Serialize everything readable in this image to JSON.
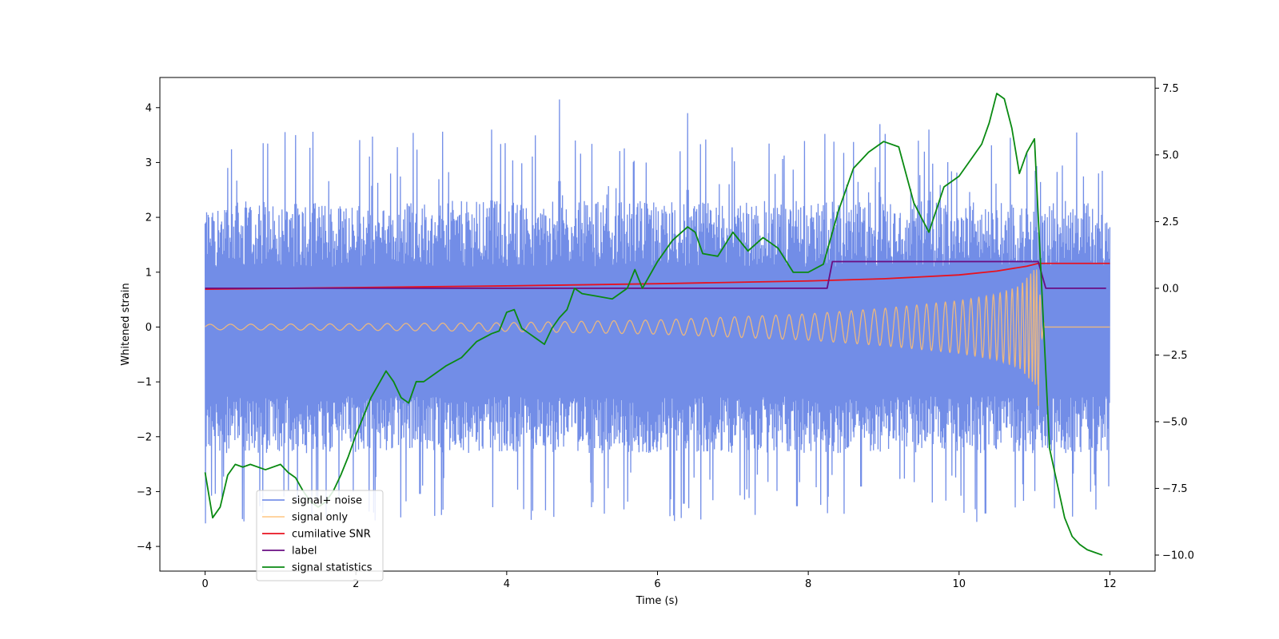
{
  "chart_data": {
    "type": "line",
    "title": "",
    "xlabel": "Time (s)",
    "ylabel": "Whitened strain",
    "y2label": "",
    "xlim": [
      -0.6,
      12.6
    ],
    "ylim": [
      -4.45,
      4.55
    ],
    "y2lim": [
      -10.6,
      7.9
    ],
    "xticks": [
      0,
      2,
      4,
      6,
      8,
      10,
      12
    ],
    "xtick_labels": [
      "0",
      "2",
      "4",
      "6",
      "8",
      "10",
      "12"
    ],
    "yticks": [
      4,
      3,
      2,
      1,
      0,
      -1,
      -2,
      -3,
      -4
    ],
    "ytick_labels": [
      "4",
      "3",
      "2",
      "1",
      "0",
      "−1",
      "−2",
      "−3",
      "−4"
    ],
    "y2ticks": [
      7.5,
      5.0,
      2.5,
      0.0,
      -2.5,
      -5.0,
      -7.5,
      -10.0
    ],
    "y2tick_labels": [
      "7.5",
      "5.0",
      "2.5",
      "0.0",
      "−2.5",
      "−5.0",
      "−7.5",
      "−10.0"
    ],
    "grid": false,
    "legend_position": "lower-left",
    "series": [
      {
        "name": "signal+ noise",
        "color": "#6a87e6",
        "axis": "left",
        "style": "noise band",
        "t_range": [
          0,
          12
        ],
        "band_low": -2.3,
        "band_high": 2.0,
        "peaks_high": [
          [
            0.05,
            2.0
          ],
          [
            0.3,
            2.9
          ],
          [
            1.2,
            3.5
          ],
          [
            3.8,
            3.6
          ],
          [
            4.7,
            4.15
          ],
          [
            6.4,
            3.9
          ],
          [
            8.95,
            3.7
          ],
          [
            9.6,
            3.6
          ],
          [
            10.9,
            3.2
          ],
          [
            11.85,
            2.8
          ]
        ],
        "peaks_low": [
          [
            0.0,
            -4.0
          ],
          [
            2.85,
            -3.4
          ],
          [
            6.35,
            -3.6
          ],
          [
            7.85,
            -3.65
          ],
          [
            8.7,
            -3.25
          ],
          [
            10.35,
            -3.8
          ],
          [
            11.8,
            -3.0
          ]
        ]
      },
      {
        "name": "signal only",
        "color": "#ffbe6f",
        "axis": "left",
        "style": "chirp",
        "t_range": [
          0,
          12
        ],
        "merger_time": 11.05,
        "amplitude_start": 0.05,
        "amplitude_peak": 1.1,
        "envelope_samples": [
          [
            0,
            0.05
          ],
          [
            2,
            0.06
          ],
          [
            4,
            0.08
          ],
          [
            6,
            0.13
          ],
          [
            8,
            0.24
          ],
          [
            9,
            0.34
          ],
          [
            10,
            0.48
          ],
          [
            10.5,
            0.6
          ],
          [
            10.8,
            0.75
          ],
          [
            11.0,
            1.05
          ]
        ]
      },
      {
        "name": "cumilative SNR",
        "color": "#e8121f",
        "axis": "left",
        "x": [
          0,
          2,
          4,
          6,
          8,
          9,
          10,
          10.5,
          10.9,
          11.05,
          11.1,
          12
        ],
        "values": [
          0.69,
          0.72,
          0.75,
          0.79,
          0.84,
          0.88,
          0.95,
          1.02,
          1.11,
          1.16,
          1.16,
          1.16
        ]
      },
      {
        "name": "label",
        "color": "#6a0d82",
        "axis": "right",
        "x": [
          0,
          8.25,
          8.32,
          11.05,
          11.15,
          11.95
        ],
        "values": [
          0.0,
          0.0,
          1.0,
          1.0,
          0.0,
          0.0
        ]
      },
      {
        "name": "signal statistics",
        "color": "#0a8a12",
        "axis": "right",
        "x": [
          0,
          0.1,
          0.2,
          0.3,
          0.4,
          0.5,
          0.6,
          0.8,
          1.0,
          1.1,
          1.2,
          1.3,
          1.4,
          1.5,
          1.6,
          1.7,
          1.8,
          1.9,
          2.0,
          2.1,
          2.2,
          2.3,
          2.4,
          2.5,
          2.6,
          2.7,
          2.8,
          2.9,
          3.0,
          3.2,
          3.4,
          3.6,
          3.8,
          3.9,
          4.0,
          4.1,
          4.2,
          4.3,
          4.4,
          4.5,
          4.6,
          4.7,
          4.8,
          4.9,
          5.0,
          5.2,
          5.4,
          5.6,
          5.7,
          5.8,
          6.0,
          6.2,
          6.4,
          6.5,
          6.6,
          6.8,
          7.0,
          7.2,
          7.4,
          7.6,
          7.8,
          8.0,
          8.2,
          8.4,
          8.6,
          8.8,
          9.0,
          9.2,
          9.4,
          9.6,
          9.8,
          10.0,
          10.2,
          10.3,
          10.4,
          10.5,
          10.6,
          10.7,
          10.8,
          10.9,
          11.0,
          11.1,
          11.2,
          11.3,
          11.4,
          11.5,
          11.6,
          11.7,
          11.8,
          11.9
        ],
        "values": [
          -6.9,
          -8.6,
          -8.2,
          -7.0,
          -6.6,
          -6.7,
          -6.6,
          -6.8,
          -6.6,
          -6.9,
          -7.1,
          -7.6,
          -8.0,
          -8.2,
          -8.0,
          -7.6,
          -7.0,
          -6.3,
          -5.5,
          -4.8,
          -4.1,
          -3.6,
          -3.1,
          -3.5,
          -4.1,
          -4.3,
          -3.5,
          -3.5,
          -3.3,
          -2.9,
          -2.6,
          -2.0,
          -1.7,
          -1.6,
          -0.9,
          -0.8,
          -1.5,
          -1.7,
          -1.9,
          -2.1,
          -1.5,
          -1.1,
          -0.8,
          0.0,
          -0.2,
          -0.3,
          -0.4,
          0.0,
          0.7,
          0.0,
          1.0,
          1.8,
          2.3,
          2.1,
          1.3,
          1.2,
          2.1,
          1.4,
          1.9,
          1.5,
          0.6,
          0.6,
          0.9,
          2.9,
          4.5,
          5.1,
          5.5,
          5.3,
          3.2,
          2.1,
          3.8,
          4.2,
          5.0,
          5.4,
          6.2,
          7.3,
          7.1,
          6.0,
          4.3,
          5.1,
          5.6,
          -0.2,
          -6.0,
          -7.3,
          -8.6,
          -9.3,
          -9.6,
          -9.8,
          -9.9,
          -10.0
        ]
      }
    ]
  }
}
